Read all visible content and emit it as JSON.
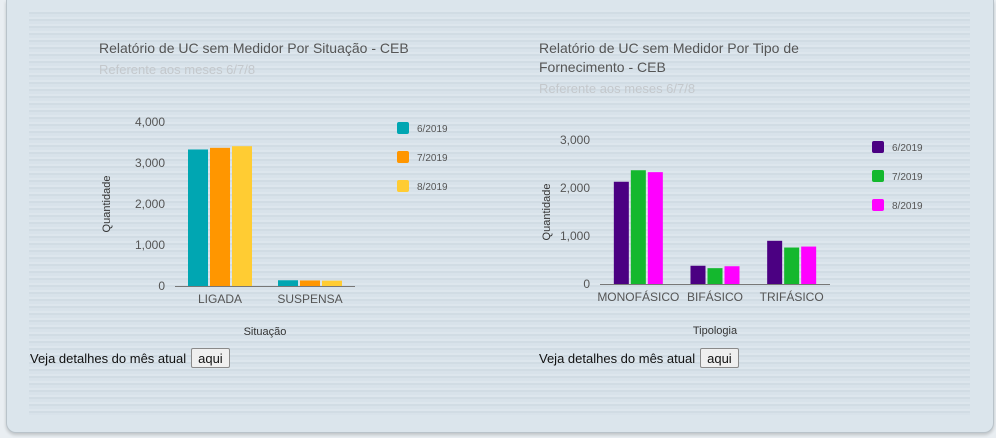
{
  "charts": [
    {
      "title": "Relatório de UC sem Medidor Por Situação - CEB",
      "subtitle": "Referente aos meses 6/7/8",
      "detail_text": "Veja detalhes do mês atual",
      "detail_button": "aqui"
    },
    {
      "title": "Relatório de UC sem Medidor Por Tipo de Fornecimento - CEB",
      "subtitle": "Referente aos meses 6/7/8",
      "detail_text": "Veja detalhes do mês atual",
      "detail_button": "aqui"
    }
  ],
  "chart_data": [
    {
      "type": "bar",
      "title": "Relatório de UC sem Medidor Por Situação - CEB",
      "subtitle": "Referente aos meses 6/7/8",
      "xlabel": "Situação",
      "ylabel": "Quantidade",
      "categories": [
        "LIGADA",
        "SUSPENSA"
      ],
      "series": [
        {
          "name": "6/2019",
          "color": "#00a6b2",
          "values": [
            3330,
            140
          ]
        },
        {
          "name": "7/2019",
          "color": "#ff9600",
          "values": [
            3370,
            135
          ]
        },
        {
          "name": "8/2019",
          "color": "#ffcc33",
          "values": [
            3410,
            130
          ]
        }
      ],
      "ylim": [
        0,
        4000
      ],
      "yticks": [
        0,
        1000,
        2000,
        3000,
        4000
      ],
      "ytick_labels": [
        "0",
        "1,000",
        "2,000",
        "3,000",
        "4,000"
      ],
      "grid": false,
      "legend": "right"
    },
    {
      "type": "bar",
      "title": "Relatório de UC sem Medidor Por Tipo de Fornecimento - CEB",
      "subtitle": "Referente aos meses 6/7/8",
      "xlabel": "Tipologia",
      "ylabel": "Quantidade",
      "categories": [
        "MONOFÁSICO",
        "BIFÁSICO",
        "TRIFÁSICO"
      ],
      "series": [
        {
          "name": "6/2019",
          "color": "#4b0082",
          "values": [
            2130,
            380,
            900
          ]
        },
        {
          "name": "7/2019",
          "color": "#14b82e",
          "values": [
            2370,
            330,
            760
          ]
        },
        {
          "name": "8/2019",
          "color": "#ff00ff",
          "values": [
            2330,
            370,
            780
          ]
        }
      ],
      "ylim": [
        0,
        3000
      ],
      "yticks": [
        0,
        1000,
        2000,
        3000
      ],
      "ytick_labels": [
        "0",
        "1,000",
        "2,000",
        "3,000"
      ],
      "grid": false,
      "legend": "right"
    }
  ]
}
